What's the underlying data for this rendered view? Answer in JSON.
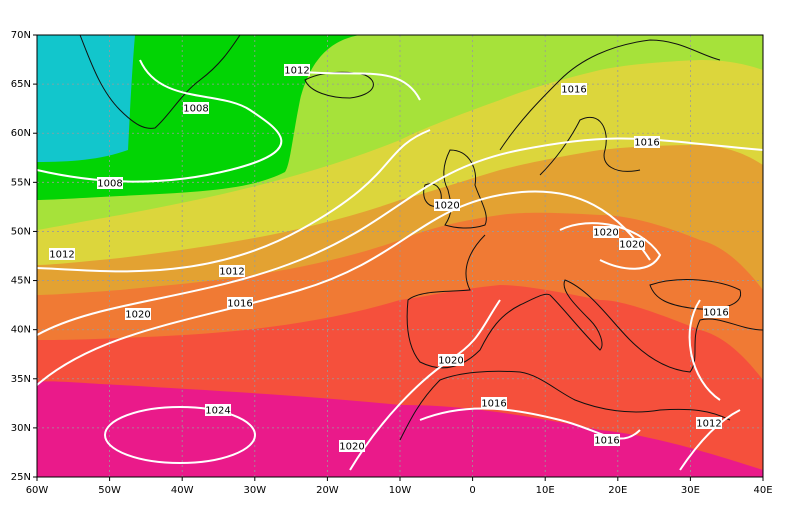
{
  "map": {
    "xlim": [
      -60,
      40
    ],
    "ylim": [
      25,
      70
    ],
    "xticks": [
      {
        "value": -60,
        "label": "60W"
      },
      {
        "value": -50,
        "label": "50W"
      },
      {
        "value": -40,
        "label": "40W"
      },
      {
        "value": -30,
        "label": "30W"
      },
      {
        "value": -20,
        "label": "20W"
      },
      {
        "value": -10,
        "label": "10W"
      },
      0,
      {
        "value": 10,
        "label": "10E"
      },
      {
        "value": 20,
        "label": "20E"
      },
      {
        "value": 30,
        "label": "30E"
      },
      {
        "value": 40,
        "label": "40E"
      }
    ],
    "yticks": [
      {
        "value": 25,
        "label": "25N"
      },
      {
        "value": 30,
        "label": "30N"
      },
      {
        "value": 35,
        "label": "35N"
      },
      {
        "value": 40,
        "label": "40N"
      },
      {
        "value": 45,
        "label": "45N"
      },
      {
        "value": 50,
        "label": "50N"
      },
      {
        "value": 55,
        "label": "55N"
      },
      {
        "value": 60,
        "label": "60N"
      },
      {
        "value": 65,
        "label": "65N"
      },
      {
        "value": 70,
        "label": "70N"
      }
    ],
    "isobar_labels": [
      1012,
      1008,
      1008,
      1012,
      1012,
      1016,
      1020,
      1020,
      1016,
      1016,
      1020,
      1020,
      1016,
      1020,
      1016,
      1024,
      1020,
      1016,
      1012
    ]
  }
}
